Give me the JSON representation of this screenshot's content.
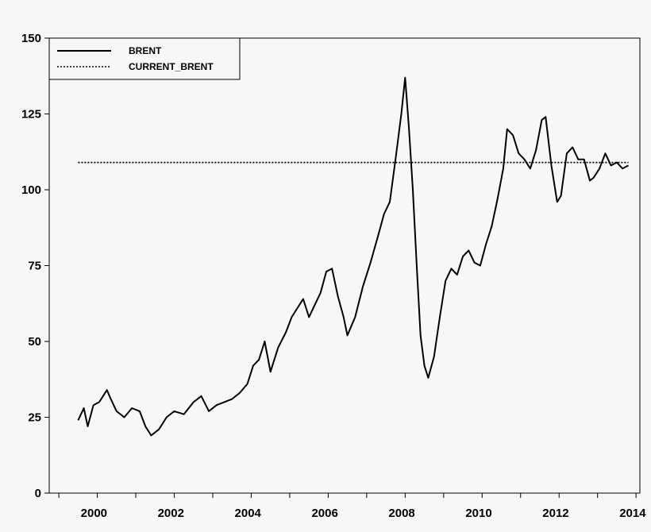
{
  "chart_data": {
    "type": "line",
    "title": "",
    "xlabel": "",
    "ylabel": "",
    "xlim": [
      1999.25,
      2014.6
    ],
    "ylim": [
      0,
      150
    ],
    "y_ticks": [
      0,
      25,
      50,
      75,
      100,
      125,
      150
    ],
    "x_ticks": [
      2000,
      2002,
      2004,
      2006,
      2008,
      2010,
      2012,
      2014
    ],
    "grid": false,
    "legend": {
      "position": "top-left",
      "entries": [
        {
          "label": "BRENT",
          "style": "solid"
        },
        {
          "label": "CURRENT_BRENT",
          "style": "dotted"
        }
      ]
    },
    "series": [
      {
        "name": "BRENT",
        "style": "solid",
        "color": "#000000",
        "x": [
          2000.0,
          2000.15,
          2000.25,
          2000.4,
          2000.55,
          2000.75,
          2000.85,
          2001.0,
          2001.2,
          2001.4,
          2001.6,
          2001.75,
          2001.9,
          2002.1,
          2002.3,
          2002.5,
          2002.75,
          2003.0,
          2003.2,
          2003.4,
          2003.6,
          2003.8,
          2004.0,
          2004.2,
          2004.4,
          2004.55,
          2004.7,
          2004.85,
          2005.0,
          2005.2,
          2005.4,
          2005.55,
          2005.7,
          2005.85,
          2006.0,
          2006.15,
          2006.3,
          2006.45,
          2006.6,
          2006.75,
          2006.9,
          2007.0,
          2007.2,
          2007.4,
          2007.6,
          2007.8,
          2007.95,
          2008.1,
          2008.25,
          2008.4,
          2008.5,
          2008.6,
          2008.7,
          2008.8,
          2008.9,
          2009.0,
          2009.1,
          2009.25,
          2009.4,
          2009.55,
          2009.7,
          2009.85,
          2010.0,
          2010.15,
          2010.3,
          2010.45,
          2010.6,
          2010.75,
          2010.9,
          2011.05,
          2011.15,
          2011.3,
          2011.45,
          2011.6,
          2011.75,
          2011.9,
          2012.05,
          2012.15,
          2012.3,
          2012.45,
          2012.55,
          2012.7,
          2012.85,
          2013.0,
          2013.15,
          2013.3,
          2013.4,
          2013.55,
          2013.7,
          2013.85,
          2014.0,
          2014.15,
          2014.3
        ],
        "y": [
          24,
          28,
          22,
          29,
          30,
          34,
          31,
          27,
          25,
          28,
          27,
          22,
          19,
          21,
          25,
          27,
          26,
          30,
          32,
          27,
          29,
          30,
          31,
          33,
          36,
          42,
          44,
          50,
          40,
          48,
          53,
          58,
          61,
          64,
          58,
          62,
          66,
          73,
          74,
          65,
          58,
          52,
          58,
          68,
          76,
          85,
          92,
          96,
          110,
          125,
          137,
          120,
          100,
          75,
          52,
          42,
          38,
          45,
          58,
          70,
          74,
          72,
          78,
          80,
          76,
          75,
          82,
          88,
          97,
          107,
          120,
          118,
          112,
          110,
          107,
          113,
          123,
          124,
          108,
          96,
          98,
          112,
          114,
          110,
          110,
          103,
          104,
          107,
          112,
          108,
          109,
          107,
          108
        ]
      },
      {
        "name": "CURRENT_BRENT",
        "style": "dotted",
        "color": "#000000",
        "x": [
          2000.0,
          2014.3
        ],
        "y": [
          109,
          109
        ]
      }
    ]
  }
}
